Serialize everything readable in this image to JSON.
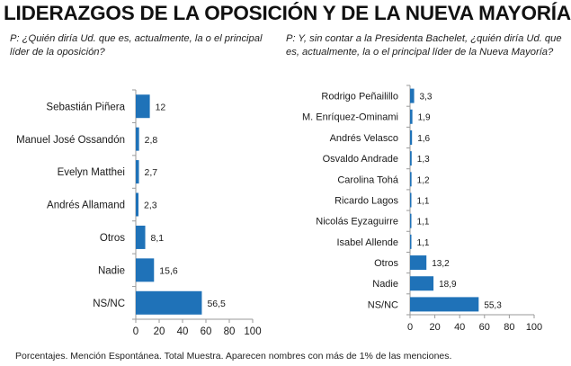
{
  "title": "LIDERAZGOS DE LA OPOSICIÓN Y DE LA NUEVA MAYORÍA",
  "footnote": "Porcentajes. Mención Espontánea. Total Muestra. Aparecen nombres con más de 1% de las menciones.",
  "colors": {
    "bar": "#1f72b8",
    "axis": "#9a9a9a",
    "text": "#1a1a1a"
  },
  "chart_data": [
    {
      "type": "bar",
      "orientation": "horizontal",
      "question": "P: ¿Quién diría Ud. que es, actualmente, la o el principal líder de la oposición?",
      "categories": [
        "Sebastián Piñera",
        "Manuel José Ossandón",
        "Evelyn Matthei",
        "Andrés Allamand",
        "Otros",
        "Nadie",
        "NS/NC"
      ],
      "values": [
        12,
        2.8,
        2.7,
        2.3,
        8.1,
        15.6,
        56.5
      ],
      "value_labels": [
        "12",
        "2,8",
        "2,7",
        "2,3",
        "8,1",
        "15,6",
        "56,5"
      ],
      "xlim": [
        0,
        100
      ],
      "xticks": [
        "0",
        "20",
        "40",
        "60",
        "80",
        "100"
      ],
      "grid": false
    },
    {
      "type": "bar",
      "orientation": "horizontal",
      "question": "P: Y, sin contar a la Presidenta Bachelet, ¿quién diría Ud. que es, actualmente, la o el principal líder de la Nueva Mayoría?",
      "categories": [
        "Rodrigo Peñailillo",
        "M. Enríquez-Ominami",
        "Andrés Velasco",
        "Osvaldo Andrade",
        "Carolina Tohá",
        "Ricardo Lagos",
        "Nicolás Eyzaguirre",
        "Isabel Allende",
        "Otros",
        "Nadie",
        "NS/NC"
      ],
      "values": [
        3.3,
        1.9,
        1.6,
        1.3,
        1.2,
        1.1,
        1.1,
        1.1,
        13.2,
        18.9,
        55.3
      ],
      "value_labels": [
        "3,3",
        "1,9",
        "1,6",
        "1,3",
        "1,2",
        "1,1",
        "1,1",
        "1,1",
        "13,2",
        "18,9",
        "55,3"
      ],
      "xlim": [
        0,
        100
      ],
      "xticks": [
        "0",
        "20",
        "40",
        "60",
        "80",
        "100"
      ],
      "grid": false
    }
  ]
}
